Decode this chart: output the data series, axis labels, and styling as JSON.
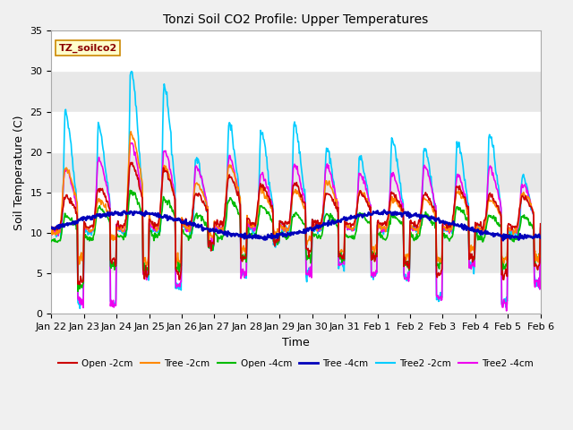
{
  "title": "Tonzi Soil CO2 Profile: Upper Temperatures",
  "xlabel": "Time",
  "ylabel": "Soil Temperature (C)",
  "ylim": [
    0,
    35
  ],
  "yticks": [
    0,
    5,
    10,
    15,
    20,
    25,
    30,
    35
  ],
  "legend_label": "TZ_soilco2",
  "series": {
    "Open -2cm": {
      "color": "#cc0000",
      "lw": 1.2
    },
    "Tree -2cm": {
      "color": "#ff8800",
      "lw": 1.2
    },
    "Open -4cm": {
      "color": "#00bb00",
      "lw": 1.2
    },
    "Tree -4cm": {
      "color": "#0000bb",
      "lw": 1.8
    },
    "Tree2 -2cm": {
      "color": "#00ccff",
      "lw": 1.2
    },
    "Tree2 -4cm": {
      "color": "#ee00ee",
      "lw": 1.2
    }
  },
  "xticklabels": [
    "Jan 22",
    "Jan 23",
    "Jan 24",
    "Jan 25",
    "Jan 26",
    "Jan 27",
    "Jan 28",
    "Jan 29",
    "Jan 30",
    "Jan 31",
    "Feb 1",
    "Feb 2",
    "Feb 3",
    "Feb 4",
    "Feb 5",
    "Feb 6"
  ],
  "bg_bands": [
    {
      "ymin": 0,
      "ymax": 5,
      "color": "#ffffff"
    },
    {
      "ymin": 5,
      "ymax": 10,
      "color": "#e8e8e8"
    },
    {
      "ymin": 10,
      "ymax": 15,
      "color": "#ffffff"
    },
    {
      "ymin": 15,
      "ymax": 20,
      "color": "#e8e8e8"
    },
    {
      "ymin": 20,
      "ymax": 25,
      "color": "#ffffff"
    },
    {
      "ymin": 25,
      "ymax": 30,
      "color": "#e8e8e8"
    },
    {
      "ymin": 30,
      "ymax": 35,
      "color": "#ffffff"
    }
  ]
}
